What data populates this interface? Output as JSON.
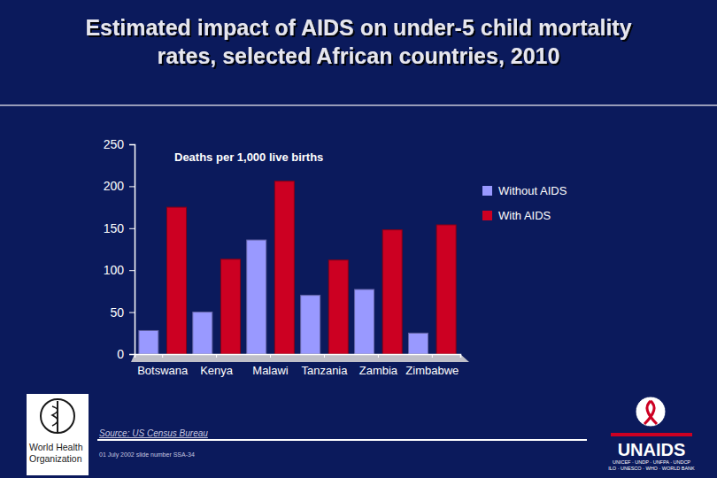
{
  "chart_data": {
    "type": "bar",
    "title": "Estimated impact of AIDS on under-5 child mortality rates, selected African countries, 2010",
    "y_label": "Deaths per 1,000 live births",
    "categories": [
      "Botswana",
      "Kenya",
      "Malawi",
      "Tanzania",
      "Zambia",
      "Zimbabwe"
    ],
    "series": [
      {
        "name": "Without AIDS",
        "color": "#9999ff",
        "values": [
          28,
          50,
          136,
          70,
          77,
          25
        ]
      },
      {
        "name": "With AIDS",
        "color": "#cc0022",
        "values": [
          175,
          113,
          206,
          112,
          148,
          154
        ]
      }
    ],
    "ylim": [
      0,
      250
    ],
    "yticks": [
      0,
      50,
      100,
      150,
      200,
      250
    ],
    "grid": false,
    "legend": "right",
    "annotations": [
      "Source: US Census Bureau",
      "01 July 2002 slide number SSA-34",
      "World Health Organization",
      "UNAIDS",
      "UNICEF · UNDP · UNFPA · UNDCP",
      "ILO · UNESCO · WHO · WORLD BANK"
    ]
  }
}
